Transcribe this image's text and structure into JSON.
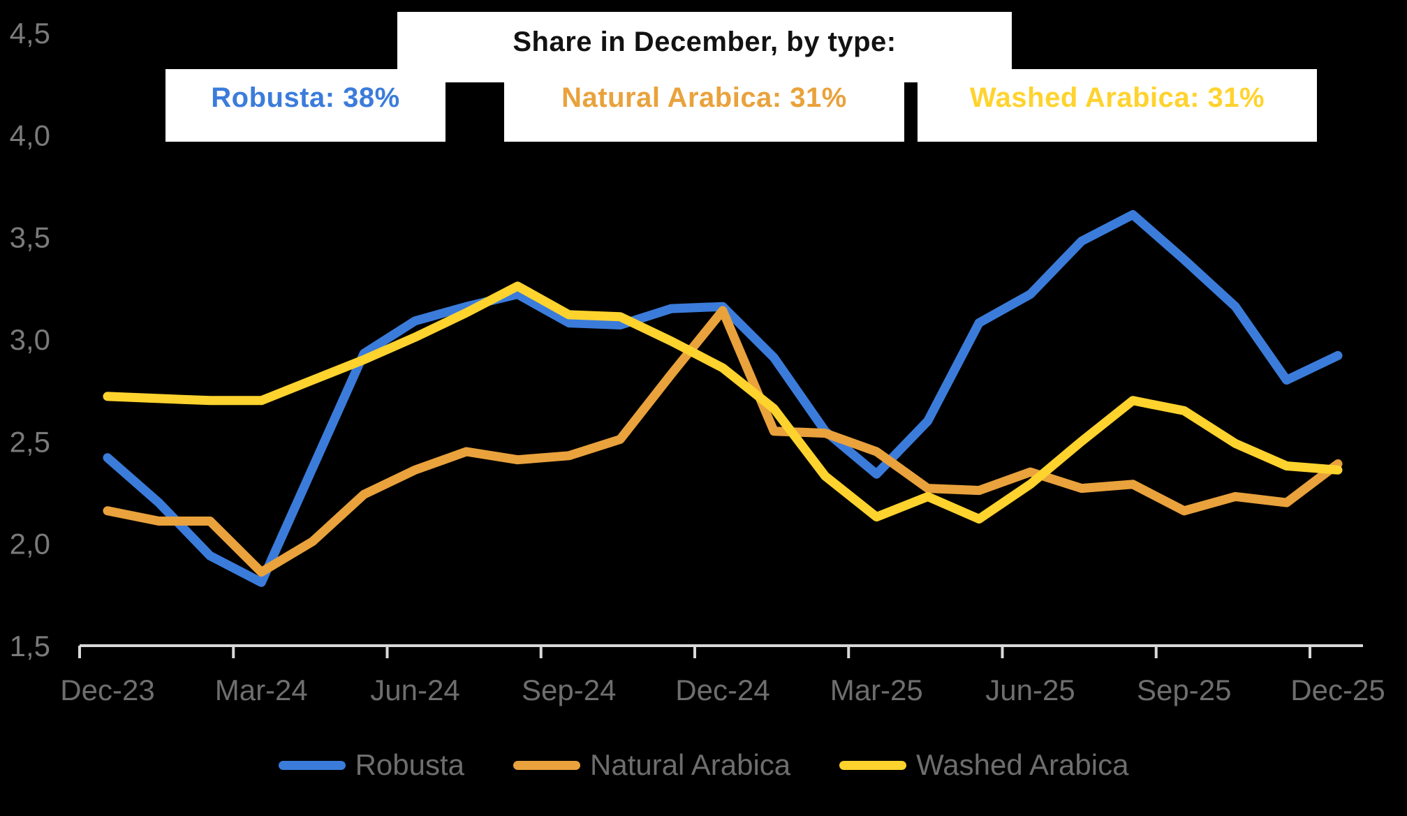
{
  "header": {
    "title": "Share in December, by type:",
    "badges": [
      {
        "id": "robusta",
        "text": "Robusta: 38%",
        "color": "#3B7CDB"
      },
      {
        "id": "natural-arabica",
        "text": "Natural Arabica: 31%",
        "color": "#E9A23C"
      },
      {
        "id": "washed-arabica",
        "text": "Washed Arabica: 31%",
        "color": "#FFD32E"
      }
    ]
  },
  "colors": {
    "background": "#000000",
    "box": "#FFFFFF",
    "axis": "#D9D9D9",
    "x_label": "#6E6E6E",
    "y_label": "#7A7A7A",
    "robusta": "#3B7CDB",
    "natural_arabica": "#E9A23C",
    "washed_arabica": "#FFD32E"
  },
  "chart_data": {
    "type": "line",
    "title": "Share in December, by type:",
    "xlabel": "",
    "ylabel": "",
    "ylim": [
      1.5,
      4.5
    ],
    "grid": false,
    "legend_position": "bottom",
    "decimal_separator": ",",
    "x": [
      "Dec-23",
      "Jan-24",
      "Feb-24",
      "Mar-24",
      "Apr-24",
      "May-24",
      "Jun-24",
      "Jul-24",
      "Aug-24",
      "Sep-24",
      "Oct-24",
      "Nov-24",
      "Dec-24",
      "Jan-25",
      "Feb-25",
      "Mar-25",
      "Apr-25",
      "May-25",
      "Jun-25",
      "Jul-25",
      "Aug-25",
      "Sep-25",
      "Oct-25",
      "Nov-25",
      "Dec-25"
    ],
    "x_tick_every": 3,
    "yticks": [
      1.5,
      2.0,
      2.5,
      3.0,
      3.5,
      4.0,
      4.5
    ],
    "ytick_labels": [
      "1,5",
      "2,0",
      "2,5",
      "3,0",
      "3,5",
      "4,0",
      "4,5"
    ],
    "series": [
      {
        "name": "Robusta",
        "color": "#3B7CDB",
        "december_share": "38%",
        "values": [
          2.42,
          2.2,
          1.94,
          1.81,
          2.37,
          2.93,
          3.09,
          3.16,
          3.22,
          3.08,
          3.07,
          3.15,
          3.16,
          2.91,
          2.55,
          2.34,
          2.6,
          3.08,
          3.22,
          3.48,
          3.61,
          3.39,
          3.16,
          2.8,
          2.92
        ]
      },
      {
        "name": "Natural Arabica",
        "color": "#E9A23C",
        "december_share": "31%",
        "values": [
          2.16,
          2.11,
          2.11,
          1.86,
          2.01,
          2.24,
          2.36,
          2.45,
          2.41,
          2.43,
          2.51,
          2.83,
          3.14,
          2.55,
          2.54,
          2.45,
          2.27,
          2.26,
          2.35,
          2.27,
          2.29,
          2.16,
          2.23,
          2.2,
          2.39
        ]
      },
      {
        "name": "Washed Arabica",
        "color": "#FFD32E",
        "december_share": "31%",
        "values": [
          2.72,
          2.71,
          2.7,
          2.7,
          2.8,
          2.9,
          3.01,
          3.13,
          3.26,
          3.12,
          3.11,
          2.99,
          2.86,
          2.66,
          2.33,
          2.13,
          2.23,
          2.12,
          2.29,
          2.5,
          2.7,
          2.65,
          2.49,
          2.38,
          2.36
        ]
      }
    ]
  },
  "legend": [
    {
      "label": "Robusta",
      "color": "#3B7CDB"
    },
    {
      "label": "Natural Arabica",
      "color": "#E9A23C"
    },
    {
      "label": "Washed Arabica",
      "color": "#FFD32E"
    }
  ]
}
